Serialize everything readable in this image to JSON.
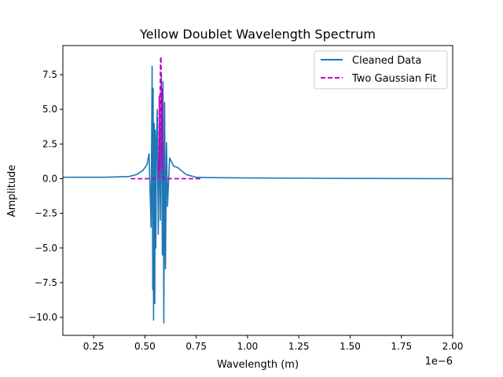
{
  "chart_data": {
    "type": "line",
    "title": "Yellow Doublet Wavelength Spectrum",
    "xlabel": "Wavelength (m)",
    "ylabel": "Amplitude",
    "x_offset_label": "1e−6",
    "xlim": [
      0.1,
      2.0
    ],
    "ylim": [
      -11.3,
      9.6
    ],
    "x_ticks": [
      0.25,
      0.5,
      0.75,
      1.0,
      1.25,
      1.5,
      1.75,
      2.0
    ],
    "x_tick_labels": [
      "0.25",
      "0.50",
      "0.75",
      "1.00",
      "1.25",
      "1.50",
      "1.75",
      "2.00"
    ],
    "y_ticks": [
      -10.0,
      -7.5,
      -5.0,
      -2.5,
      0.0,
      2.5,
      5.0,
      7.5
    ],
    "y_tick_labels": [
      "−10.0",
      "−7.5",
      "−5.0",
      "−2.5",
      "0.0",
      "2.5",
      "5.0",
      "7.5"
    ],
    "grid": false,
    "legend_position": "top-right",
    "series": [
      {
        "name": "Cleaned Data",
        "color": "#1f77b4",
        "style": "solid",
        "x": [
          0.1,
          0.3,
          0.42,
          0.46,
          0.49,
          0.51,
          0.52,
          0.53,
          0.535,
          0.538,
          0.54,
          0.542,
          0.545,
          0.548,
          0.55,
          0.553,
          0.556,
          0.56,
          0.565,
          0.57,
          0.575,
          0.58,
          0.585,
          0.588,
          0.592,
          0.596,
          0.6,
          0.605,
          0.61,
          0.62,
          0.64,
          0.66,
          0.7,
          0.75,
          0.8,
          1.0,
          1.5,
          2.0
        ],
        "y": [
          0.1,
          0.1,
          0.15,
          0.3,
          0.6,
          1.0,
          1.8,
          -3.5,
          8.1,
          -8.0,
          6.5,
          -10.2,
          4.0,
          -9.0,
          3.5,
          -5.0,
          2.5,
          5.0,
          -4.0,
          4.2,
          -3.0,
          7.5,
          -5.5,
          7.0,
          -10.4,
          5.5,
          -6.5,
          2.6,
          -2.0,
          1.5,
          0.9,
          0.8,
          0.3,
          0.1,
          0.08,
          0.05,
          0.02,
          0.0
        ]
      },
      {
        "name": "Two Gaussian Fit",
        "color": "#bf00bf",
        "style": "dashed",
        "x": [
          0.43,
          0.55,
          0.565,
          0.568,
          0.57,
          0.572,
          0.574,
          0.576,
          0.578,
          0.58,
          0.582,
          0.584,
          0.586,
          0.588,
          0.6,
          0.78
        ],
        "y": [
          0.0,
          0.0,
          0.0,
          1.2,
          6.0,
          0.5,
          6.0,
          8.5,
          8.8,
          6.0,
          0.8,
          6.5,
          2.0,
          0.0,
          0.0,
          0.0
        ]
      }
    ]
  }
}
